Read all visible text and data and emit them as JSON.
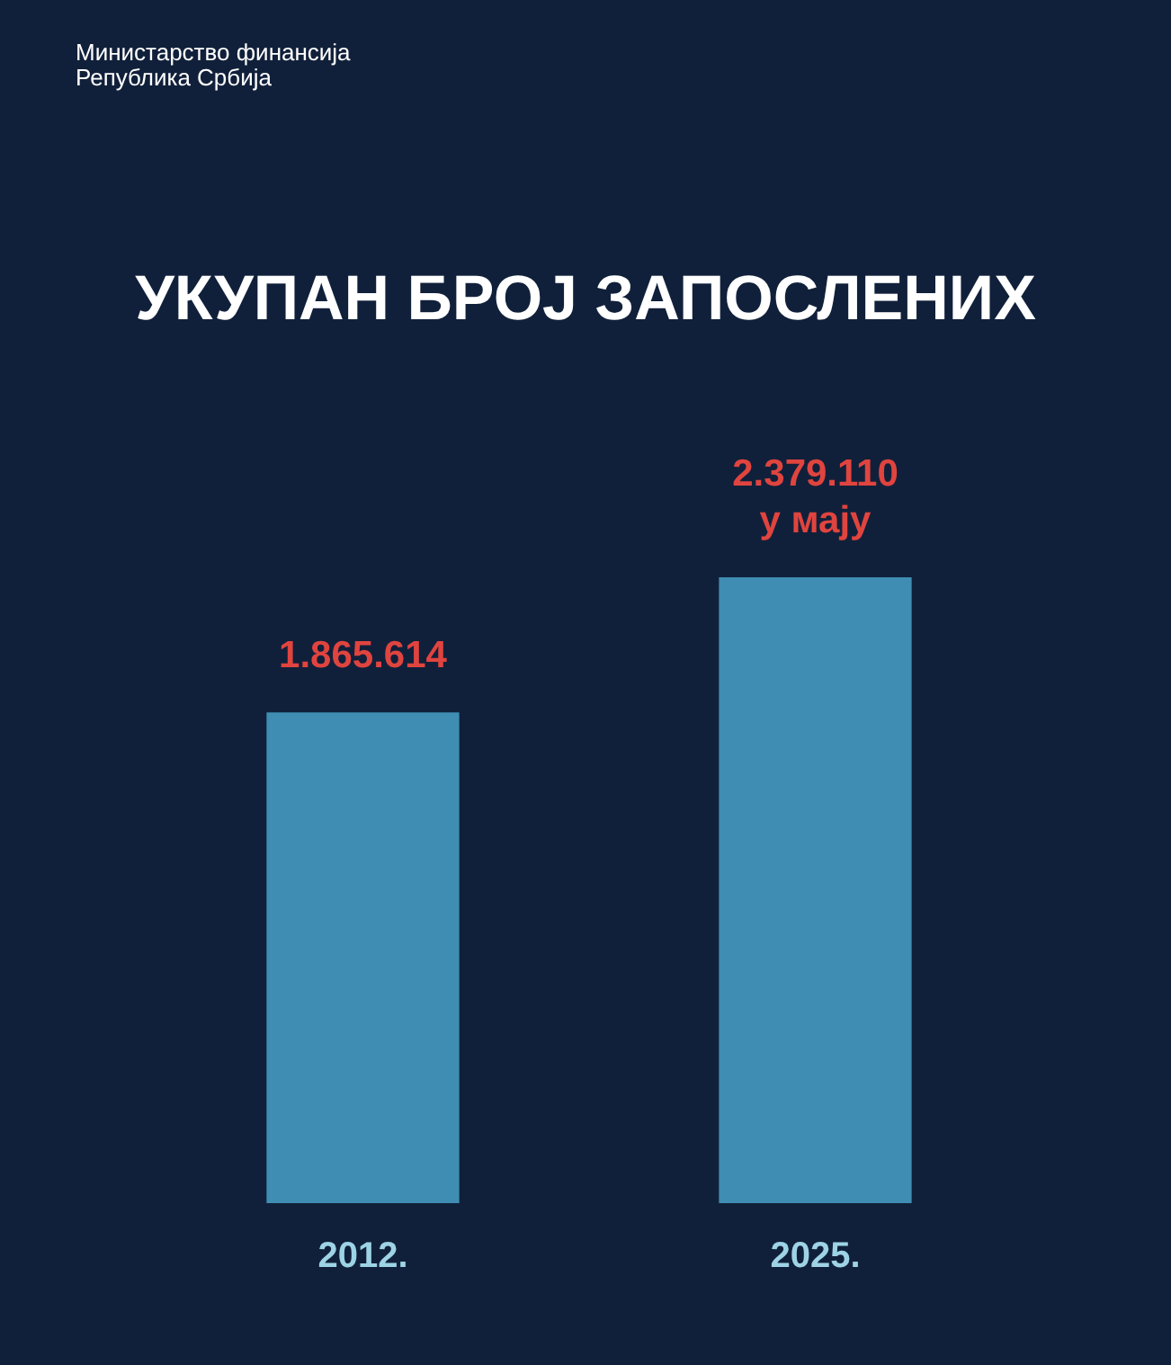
{
  "chart_data": {
    "type": "bar",
    "title": "УКУПАН БРОЈ ЗАПОСЛЕНИХ",
    "annotations": [
      "Министарство финансија",
      "Република Србија"
    ],
    "categories": [
      "2012.",
      "2025."
    ],
    "values": [
      1865614,
      2379110
    ],
    "value_labels": [
      "1.865.614",
      "2.379.110\nу мају"
    ],
    "color": "#3f8db3",
    "tick_labels": "x"
  }
}
